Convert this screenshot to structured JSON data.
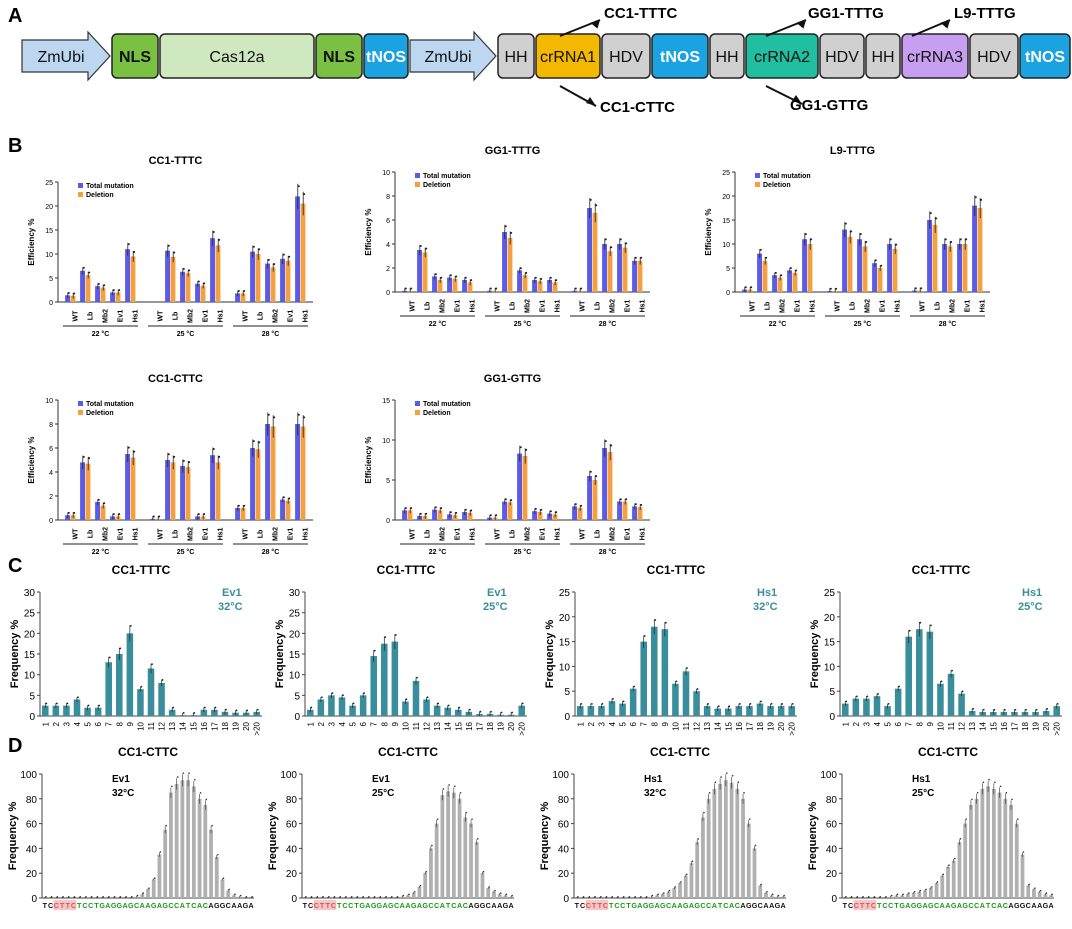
{
  "panel_letters": [
    "A",
    "B",
    "C",
    "D"
  ],
  "construct": {
    "blocks": [
      {
        "label": "ZmUbi",
        "kind": "promoter"
      },
      {
        "label": "NLS",
        "kind": "nls"
      },
      {
        "label": "Cas12a",
        "kind": "cas"
      },
      {
        "label": "NLS",
        "kind": "nls"
      },
      {
        "label": "tNOS",
        "kind": "term"
      },
      {
        "label": "ZmUbi",
        "kind": "promoter"
      },
      {
        "label": "HH",
        "kind": "rz"
      },
      {
        "label": "crRNA1",
        "kind": "cr1"
      },
      {
        "label": "HDV",
        "kind": "rz"
      },
      {
        "label": "tNOS",
        "kind": "term"
      },
      {
        "label": "HH",
        "kind": "rz"
      },
      {
        "label": "crRNA2",
        "kind": "cr2"
      },
      {
        "label": "HDV",
        "kind": "rz"
      },
      {
        "label": "HH",
        "kind": "rz"
      },
      {
        "label": "crRNA3",
        "kind": "cr3"
      },
      {
        "label": "HDV",
        "kind": "rz"
      },
      {
        "label": "tNOS",
        "kind": "term"
      }
    ],
    "targets_top": [
      "CC1-TTTC",
      "GG1-TTTG",
      "L9-TTTG"
    ],
    "targets_bottom": [
      "CC1-CTTC",
      "GG1-GTTG"
    ],
    "colors": {
      "promoter": "#bcd7ef",
      "nls": "#7ac143",
      "cas": "#cfe8c0",
      "term": "#1aa3e0",
      "rz": "#d0d0d0",
      "cr1": "#f5b800",
      "cr2": "#1fbf9f",
      "cr3": "#c79ef0"
    }
  },
  "legend": {
    "total": "Total mutation",
    "deletion": "Deletion"
  },
  "colors": {
    "total": "#5b5be8",
    "deletion": "#f5a040",
    "freq_c": "#3a8e9c",
    "freq_d": "#b0b0b0",
    "pam": "#e05050",
    "seq_green": "#1a9a1a"
  },
  "chart_data": [
    {
      "panel": "B",
      "type": "bar",
      "title": "CC1-TTTC",
      "ylabel": "Efficiency %",
      "ylim": [
        0,
        25
      ],
      "yticks": [
        0,
        5,
        10,
        15,
        20,
        25
      ],
      "categories": [
        "WT",
        "Lb",
        "Mb2",
        "Ev1",
        "Hs1"
      ],
      "groups": [
        "22 °C",
        "25 °C",
        "28 °C"
      ],
      "series": [
        {
          "name": "Total mutation",
          "values": [
            [
              1.4,
              6.5,
              3.3,
              2.0,
              11.0
            ],
            [
              null,
              10.7,
              6.3,
              3.8,
              13.3
            ],
            [
              1.8,
              10.5,
              8.0,
              9.0,
              22.0
            ]
          ]
        },
        {
          "name": "Deletion",
          "values": [
            [
              1.3,
              5.6,
              3.0,
              2.0,
              9.5
            ],
            [
              null,
              9.4,
              6.0,
              3.4,
              11.8
            ],
            [
              1.8,
              10.0,
              7.2,
              8.6,
              20.5
            ]
          ]
        }
      ]
    },
    {
      "panel": "B",
      "type": "bar",
      "title": "GG1-TTTG",
      "ylabel": "Efficiency %",
      "ylim": [
        0,
        10
      ],
      "yticks": [
        0,
        2,
        4,
        6,
        8,
        10
      ],
      "categories": [
        "WT",
        "Lb",
        "Mb2",
        "Ev1",
        "Hs1"
      ],
      "groups": [
        "22 °C",
        "25 °C",
        "28 °C"
      ],
      "series": [
        {
          "name": "Total mutation",
          "values": [
            [
              0.1,
              3.5,
              1.3,
              1.2,
              1.0
            ],
            [
              0.1,
              5.0,
              1.8,
              1.0,
              1.0
            ],
            [
              0.1,
              7.0,
              4.0,
              4.0,
              2.6
            ]
          ]
        },
        {
          "name": "Deletion",
          "values": [
            [
              0.1,
              3.3,
              1.0,
              1.1,
              0.8
            ],
            [
              0.1,
              4.5,
              1.4,
              0.9,
              0.8
            ],
            [
              0.1,
              6.6,
              3.4,
              3.7,
              2.6
            ]
          ]
        }
      ]
    },
    {
      "panel": "B",
      "type": "bar",
      "title": "L9-TTTG",
      "ylabel": "Efficiency %",
      "ylim": [
        0,
        25
      ],
      "yticks": [
        0,
        5,
        10,
        15,
        20,
        25
      ],
      "categories": [
        "WT",
        "Lb",
        "Mb2",
        "Ev1",
        "Hs1"
      ],
      "groups": [
        "22 °C",
        "25 °C",
        "28 °C"
      ],
      "series": [
        {
          "name": "Total mutation",
          "values": [
            [
              0.5,
              8.0,
              3.5,
              4.5,
              11.0
            ],
            [
              0.2,
              13.0,
              11.0,
              6.0,
              10.0
            ],
            [
              0.3,
              15.0,
              10.0,
              10.0,
              18.0
            ]
          ]
        },
        {
          "name": "Deletion",
          "values": [
            [
              0.5,
              6.5,
              3.0,
              4.0,
              10.0
            ],
            [
              0.2,
              11.5,
              9.5,
              5.0,
              9.0
            ],
            [
              0.3,
              14.0,
              9.5,
              10.0,
              17.5
            ]
          ]
        }
      ]
    },
    {
      "panel": "B",
      "type": "bar",
      "title": "CC1-CTTC",
      "ylabel": "Efficiency %",
      "ylim": [
        0,
        10
      ],
      "yticks": [
        0,
        2,
        4,
        6,
        8,
        10
      ],
      "categories": [
        "WT",
        "Lb",
        "Mb2",
        "Ev1",
        "Hs1"
      ],
      "groups": [
        "22 °C",
        "25 °C",
        "28 °C"
      ],
      "series": [
        {
          "name": "Total mutation",
          "values": [
            [
              0.4,
              4.8,
              1.5,
              0.3,
              5.5
            ],
            [
              0.1,
              5.0,
              4.5,
              0.3,
              5.4
            ],
            [
              1.0,
              6.0,
              8.0,
              1.7,
              8.0
            ]
          ]
        },
        {
          "name": "Deletion",
          "values": [
            [
              0.4,
              4.7,
              1.2,
              0.3,
              5.2
            ],
            [
              0.1,
              4.8,
              4.4,
              0.3,
              4.8
            ],
            [
              1.0,
              5.9,
              7.8,
              1.6,
              7.8
            ]
          ]
        }
      ]
    },
    {
      "panel": "B",
      "type": "bar",
      "title": "GG1-GTTG",
      "ylabel": "Efficiency %",
      "ylim": [
        0,
        15
      ],
      "yticks": [
        0,
        5,
        10,
        15
      ],
      "categories": [
        "WT",
        "Lb",
        "Mb2",
        "Ev1",
        "Hs1"
      ],
      "groups": [
        "22 °C",
        "25 °C",
        "28 °C"
      ],
      "series": [
        {
          "name": "Total mutation",
          "values": [
            [
              1.2,
              0.5,
              1.3,
              0.7,
              1.0
            ],
            [
              0.3,
              2.3,
              8.3,
              1.1,
              0.8
            ],
            [
              1.7,
              5.5,
              9.0,
              2.3,
              1.7
            ]
          ]
        },
        {
          "name": "Deletion",
          "values": [
            [
              1.2,
              0.5,
              1.2,
              0.6,
              0.9
            ],
            [
              0.3,
              2.2,
              8.0,
              1.0,
              0.7
            ],
            [
              1.5,
              5.0,
              8.5,
              2.3,
              1.6
            ]
          ]
        }
      ]
    },
    {
      "panel": "C",
      "type": "bar",
      "title": "CC1-TTTC",
      "enzyme": "Ev1",
      "temp": "32°C",
      "ylabel": "Frequency %",
      "ylim": [
        0,
        30
      ],
      "yticks": [
        0,
        5,
        10,
        15,
        20,
        25,
        30
      ],
      "categories": [
        "1",
        "2",
        "3",
        "4",
        "5",
        "6",
        "7",
        "8",
        "9",
        "10",
        "11",
        "12",
        "13",
        "14",
        "15",
        "16",
        "17",
        "18",
        "19",
        "20",
        ">20"
      ],
      "values": [
        2.5,
        2.5,
        2.5,
        4.0,
        2.0,
        2.0,
        13.0,
        15.0,
        20.0,
        6.5,
        11.5,
        8.0,
        1.5,
        0.2,
        0.2,
        1.5,
        1.5,
        1.0,
        0.8,
        0.8,
        1.0
      ]
    },
    {
      "panel": "C",
      "type": "bar",
      "title": "CC1-TTTC",
      "enzyme": "Ev1",
      "temp": "25°C",
      "ylabel": "Frequency %",
      "ylim": [
        0,
        30
      ],
      "yticks": [
        0,
        5,
        10,
        15,
        20,
        25,
        30
      ],
      "categories": [
        "1",
        "2",
        "3",
        "4",
        "5",
        "6",
        "7",
        "8",
        "9",
        "10",
        "11",
        "12",
        "13",
        "14",
        "15",
        "16",
        "17",
        "18",
        "19",
        "20",
        ">20"
      ],
      "values": [
        1.5,
        4.0,
        5.0,
        4.5,
        2.5,
        5.0,
        14.5,
        17.5,
        18.0,
        3.5,
        8.5,
        4.0,
        2.5,
        2.0,
        1.5,
        1.0,
        0.5,
        0.5,
        0.3,
        0.3,
        2.5
      ]
    },
    {
      "panel": "C",
      "type": "bar",
      "title": "CC1-TTTC",
      "enzyme": "Hs1",
      "temp": "32°C",
      "ylabel": "Frequency %",
      "ylim": [
        0,
        25
      ],
      "yticks": [
        0,
        5,
        10,
        15,
        20,
        25
      ],
      "categories": [
        "1",
        "2",
        "3",
        "4",
        "5",
        "6",
        "7",
        "8",
        "9",
        "10",
        "11",
        "12",
        "13",
        "14",
        "15",
        "16",
        "17",
        "18",
        "19",
        "20",
        ">20"
      ],
      "values": [
        2.0,
        2.0,
        2.0,
        3.0,
        2.5,
        5.5,
        15.0,
        18.0,
        17.5,
        6.5,
        9.0,
        5.0,
        2.0,
        1.5,
        1.5,
        2.0,
        2.0,
        2.5,
        2.0,
        2.0,
        2.0
      ]
    },
    {
      "panel": "C",
      "type": "bar",
      "title": "CC1-TTTC",
      "enzyme": "Hs1",
      "temp": "25°C",
      "ylabel": "Frequency %",
      "ylim": [
        0,
        25
      ],
      "yticks": [
        0,
        5,
        10,
        15,
        20,
        25
      ],
      "categories": [
        "1",
        "2",
        "3",
        "4",
        "5",
        "6",
        "7",
        "8",
        "9",
        "10",
        "11",
        "12",
        "13",
        "14",
        "15",
        "16",
        "17",
        "18",
        "19",
        "20",
        ">20"
      ],
      "values": [
        2.5,
        3.5,
        3.5,
        4.0,
        2.0,
        5.5,
        16.0,
        17.5,
        17.0,
        6.5,
        8.5,
        4.5,
        1.0,
        0.8,
        0.8,
        0.8,
        0.8,
        0.8,
        0.8,
        1.0,
        2.0
      ]
    },
    {
      "panel": "D",
      "type": "bar",
      "title": "CC1-CTTC",
      "enzyme": "Ev1",
      "temp": "32°C",
      "ylabel": "Frequency %",
      "ylim": [
        0,
        100
      ],
      "yticks": [
        0,
        20,
        40,
        60,
        80,
        100
      ],
      "sequence": "TCCTTCTCCTGAGGAGCAAGAGCCATCACAGGCAAGA",
      "values": [
        0,
        0,
        0,
        0,
        0,
        0,
        0,
        0,
        0,
        0,
        0,
        0,
        0,
        0,
        0,
        0,
        1,
        3,
        7,
        15,
        35,
        55,
        85,
        92,
        95,
        95,
        90,
        80,
        75,
        55,
        33,
        15,
        6,
        2,
        1,
        0,
        0
      ]
    },
    {
      "panel": "D",
      "type": "bar",
      "title": "CC1-CTTC",
      "enzyme": "Ev1",
      "temp": "25°C",
      "ylabel": "Frequency %",
      "ylim": [
        0,
        100
      ],
      "yticks": [
        0,
        20,
        40,
        60,
        80,
        100
      ],
      "sequence": "TCCTTCTCCTGAGGAGCAAGAGCCATCACAGGCAAGA",
      "values": [
        0,
        0,
        0,
        0,
        0,
        0,
        0,
        0,
        0,
        0,
        0,
        0,
        0,
        0,
        0,
        0,
        0,
        1,
        2,
        4,
        9,
        20,
        40,
        60,
        83,
        86,
        85,
        80,
        65,
        60,
        45,
        20,
        8,
        5,
        3,
        2,
        1
      ]
    },
    {
      "panel": "D",
      "type": "bar",
      "title": "CC1-CTTC",
      "enzyme": "Hs1",
      "temp": "32°C",
      "ylabel": "Frequency %",
      "ylim": [
        0,
        100
      ],
      "yticks": [
        0,
        20,
        40,
        60,
        80,
        100
      ],
      "sequence": "TCCTTCTCCTGAGGAGCAAGAGCCATCACAGGCAAGA",
      "values": [
        0,
        0,
        0,
        0,
        0,
        0,
        0,
        0,
        0,
        0,
        0,
        0,
        0,
        1,
        2,
        3,
        5,
        8,
        12,
        18,
        28,
        45,
        65,
        80,
        88,
        92,
        95,
        93,
        88,
        80,
        60,
        40,
        10,
        4,
        2,
        1,
        1
      ]
    },
    {
      "panel": "D",
      "type": "bar",
      "title": "CC1-CTTC",
      "enzyme": "Hs1",
      "temp": "25°C",
      "ylabel": "Frequency %",
      "ylim": [
        0,
        100
      ],
      "yticks": [
        0,
        20,
        40,
        60,
        80,
        100
      ],
      "sequence": "TCCTTCTCCTGAGGAGCAAGAGCCATCACAGGCAAGA",
      "values": [
        0,
        0,
        0,
        0,
        0,
        0,
        0,
        0,
        1,
        2,
        2,
        3,
        4,
        5,
        6,
        8,
        12,
        18,
        25,
        30,
        45,
        60,
        75,
        80,
        88,
        90,
        88,
        85,
        80,
        75,
        60,
        35,
        10,
        7,
        5,
        3,
        2
      ]
    }
  ]
}
